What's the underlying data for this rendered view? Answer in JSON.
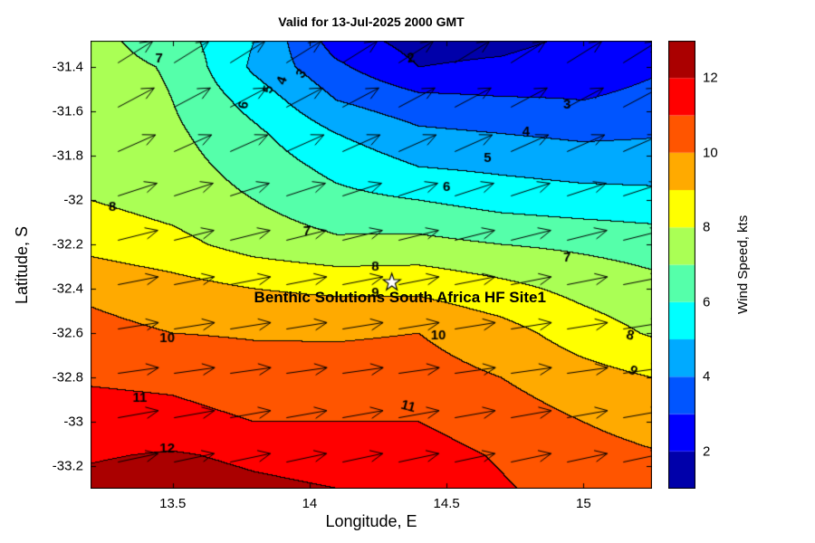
{
  "title": "Valid for 13-Jul-2025 2000 GMT",
  "annotation": {
    "text": "Benthic Solutions South Africa HF Site1",
    "lon": 14.33,
    "lat": -32.44
  },
  "star": {
    "lon": 14.3,
    "lat": -32.37
  },
  "chart_data": {
    "type": "heatmap",
    "subtype": "filled-contour-with-quiver",
    "title": "Valid for 13-Jul-2025 2000 GMT",
    "xlabel": "Longitude, E",
    "ylabel": "Latitude, S",
    "xlim": [
      13.2,
      15.25
    ],
    "ylim": [
      -33.3,
      -31.28
    ],
    "xticks": {
      "values": [
        13.5,
        14,
        14.5,
        15
      ],
      "labels": [
        "13.5",
        "14",
        "14.5",
        "15"
      ]
    },
    "yticks": {
      "values": [
        -31.4,
        -31.6,
        -31.8,
        -32,
        -32.2,
        -32.4,
        -32.6,
        -32.8,
        -33,
        -33.2
      ],
      "labels": [
        "-31.4",
        "-31.6",
        "-31.8",
        "-32",
        "-32.2",
        "-32.4",
        "-32.6",
        "-32.8",
        "-33",
        "-33.2"
      ]
    },
    "colorbar": {
      "label": "Wind Speed, kts",
      "ticks": [
        2,
        4,
        6,
        8,
        10,
        12
      ],
      "range": [
        1,
        13
      ],
      "colormap": "jet"
    },
    "contour_levels": [
      2,
      3,
      4,
      5,
      6,
      7,
      8,
      9,
      10,
      11,
      12
    ],
    "grid": {
      "lon": [
        13.2,
        13.5,
        13.8,
        14.1,
        14.4,
        14.7,
        15.0,
        15.25
      ],
      "lat": [
        -31.28,
        -31.4,
        -31.55,
        -31.7,
        -31.85,
        -32.0,
        -32.2,
        -32.4,
        -32.6,
        -32.8,
        -33.0,
        -33.15,
        -33.3
      ],
      "speed": [
        [
          7.3,
          6.5,
          5.0,
          2.5,
          1.6,
          1.7,
          2.2,
          2.6
        ],
        [
          7.4,
          6.9,
          4.8,
          3.2,
          2.0,
          2.2,
          2.6,
          2.9
        ],
        [
          7.6,
          7.0,
          5.6,
          4.0,
          3.3,
          3.1,
          3.0,
          3.2
        ],
        [
          7.8,
          7.2,
          6.2,
          5.0,
          4.2,
          4.0,
          3.8,
          3.9
        ],
        [
          7.9,
          7.4,
          6.6,
          5.7,
          5.0,
          4.8,
          4.6,
          4.6
        ],
        [
          8.0,
          7.6,
          7.0,
          6.3,
          6.0,
          5.6,
          5.4,
          5.3
        ],
        [
          8.7,
          8.3,
          7.6,
          7.2,
          7.3,
          7.0,
          6.8,
          6.6
        ],
        [
          9.8,
          9.4,
          9.0,
          8.8,
          8.8,
          8.3,
          7.7,
          7.3
        ],
        [
          10.3,
          10.0,
          9.9,
          9.9,
          10.0,
          9.4,
          8.5,
          7.9
        ],
        [
          10.9,
          10.8,
          10.5,
          10.4,
          10.4,
          10.0,
          9.4,
          9.0
        ],
        [
          11.4,
          11.3,
          11.0,
          11.0,
          11.0,
          10.5,
          10.0,
          9.6
        ],
        [
          11.9,
          12.1,
          11.8,
          11.6,
          11.4,
          10.9,
          10.4,
          10.1
        ],
        [
          12.3,
          12.5,
          12.2,
          12.0,
          11.6,
          11.1,
          10.6,
          10.3
        ]
      ]
    },
    "contour_labels": [
      {
        "v": 7,
        "lon": 13.45,
        "lat": -31.36,
        "rot": 0
      },
      {
        "v": 2,
        "lon": 14.37,
        "lat": -31.36,
        "rot": -8
      },
      {
        "v": 6,
        "lon": 13.76,
        "lat": -31.57,
        "rot": -80
      },
      {
        "v": 5,
        "lon": 13.85,
        "lat": -31.5,
        "rot": -75
      },
      {
        "v": 4,
        "lon": 13.9,
        "lat": -31.46,
        "rot": -70
      },
      {
        "v": 3,
        "lon": 13.97,
        "lat": -31.43,
        "rot": -55
      },
      {
        "v": 3,
        "lon": 14.94,
        "lat": -31.57,
        "rot": 0
      },
      {
        "v": 4,
        "lon": 14.79,
        "lat": -31.69,
        "rot": 0
      },
      {
        "v": 5,
        "lon": 14.65,
        "lat": -31.81,
        "rot": 0
      },
      {
        "v": 6,
        "lon": 14.5,
        "lat": -31.94,
        "rot": 0
      },
      {
        "v": 8,
        "lon": 13.28,
        "lat": -32.03,
        "rot": 0
      },
      {
        "v": 7,
        "lon": 13.99,
        "lat": -32.14,
        "rot": 0
      },
      {
        "v": 7,
        "lon": 14.94,
        "lat": -32.26,
        "rot": 0
      },
      {
        "v": 8,
        "lon": 14.24,
        "lat": -32.3,
        "rot": 0
      },
      {
        "v": 9,
        "lon": 14.24,
        "lat": -32.42,
        "rot": 0
      },
      {
        "v": 10,
        "lon": 13.48,
        "lat": -32.62,
        "rot": 0
      },
      {
        "v": 10,
        "lon": 14.47,
        "lat": -32.61,
        "rot": 0
      },
      {
        "v": 8,
        "lon": 15.17,
        "lat": -32.61,
        "rot": 15
      },
      {
        "v": 9,
        "lon": 15.18,
        "lat": -32.77,
        "rot": 35
      },
      {
        "v": 11,
        "lon": 13.38,
        "lat": -32.89,
        "rot": 0
      },
      {
        "v": 11,
        "lon": 14.36,
        "lat": -32.93,
        "rot": 15
      },
      {
        "v": 12,
        "lon": 13.48,
        "lat": -33.12,
        "rot": 0
      }
    ],
    "quiver": {
      "lon_start": 13.3,
      "lon_step": 0.205,
      "cols": 10,
      "rows": [
        {
          "lat": -31.38,
          "angle": 32,
          "len": 0.15
        },
        {
          "lat": -31.58,
          "angle": 28,
          "len": 0.15
        },
        {
          "lat": -31.78,
          "angle": 24,
          "len": 0.15
        },
        {
          "lat": -31.98,
          "angle": 18,
          "len": 0.15
        },
        {
          "lat": -32.18,
          "angle": 14,
          "len": 0.15
        },
        {
          "lat": -32.38,
          "angle": 11,
          "len": 0.15
        },
        {
          "lat": -32.58,
          "angle": 9,
          "len": 0.15
        },
        {
          "lat": -32.78,
          "angle": 8,
          "len": 0.15
        },
        {
          "lat": -32.98,
          "angle": 10,
          "len": 0.15
        },
        {
          "lat": -33.18,
          "angle": 12,
          "len": 0.15
        }
      ]
    }
  }
}
